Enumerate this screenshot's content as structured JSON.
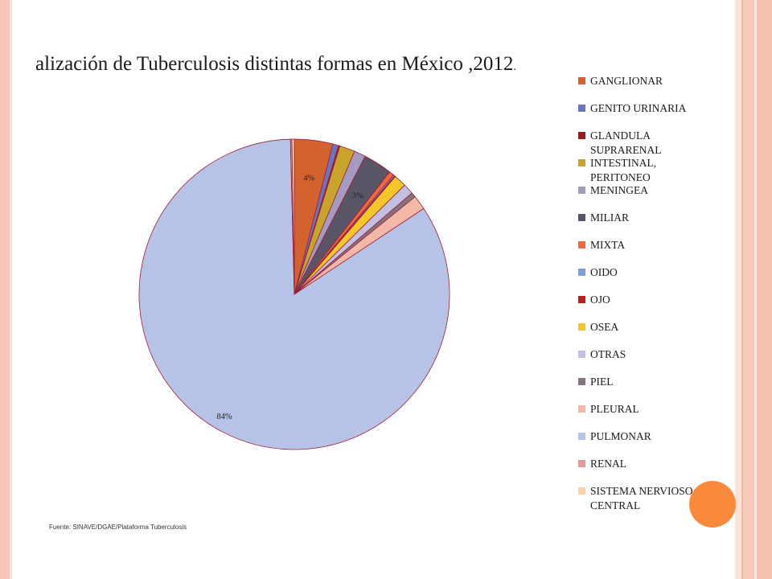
{
  "title": "alización de Tuberculosis distintas formas en México ,2012",
  "title_period": ".",
  "source": "Fuente: SINAVE/DGAE/Plataforma Tuberculosis",
  "chart_data": {
    "type": "pie",
    "title": "alización de Tuberculosis distintas formas en México ,2012",
    "legend_position": "right",
    "slices": [
      {
        "name": "GANGLIONAR",
        "value": 4.0,
        "label": "4%",
        "color": "#d4622e"
      },
      {
        "name": "GENITO URINARIA",
        "value": 0.6,
        "label": "",
        "color": "#6b73c2"
      },
      {
        "name": "GLANDULA SUPRARENAL",
        "value": 0.15,
        "label": "",
        "color": "#9b1b1b"
      },
      {
        "name": "INTESTINAL, PERITONEO",
        "value": 1.6,
        "label": "",
        "color": "#c9a42b"
      },
      {
        "name": "MENINGEA",
        "value": 1.2,
        "label": "",
        "color": "#a49ac2"
      },
      {
        "name": "MILIAR",
        "value": 3.0,
        "label": "3%",
        "color": "#595566"
      },
      {
        "name": "MIXTA",
        "value": 0.5,
        "label": "",
        "color": "#ef6b3e"
      },
      {
        "name": "OIDO",
        "value": 0.15,
        "label": "",
        "color": "#7f9ee0"
      },
      {
        "name": "OJO",
        "value": 0.1,
        "label": "",
        "color": "#b81e1e"
      },
      {
        "name": "OSEA",
        "value": 1.3,
        "label": "",
        "color": "#f5c629"
      },
      {
        "name": "OTRAS",
        "value": 1.1,
        "label": "",
        "color": "#c3bfe3"
      },
      {
        "name": "PIEL",
        "value": 0.5,
        "label": "",
        "color": "#85737f"
      },
      {
        "name": "PLEURAL",
        "value": 1.5,
        "label": "",
        "color": "#f4b8a6"
      },
      {
        "name": "PULMONAR",
        "value": 84.0,
        "label": "84%",
        "color": "#b7c3e6"
      },
      {
        "name": "RENAL",
        "value": 0.15,
        "label": "",
        "color": "#e59999"
      },
      {
        "name": "SISTEMA NERVIOSO CENTRAL",
        "value": 0.25,
        "label": "",
        "color": "#fbd2a8"
      }
    ]
  },
  "legend": [
    {
      "label": "GANGLIONAR",
      "color": "#d4622e"
    },
    {
      "label": "GENITO URINARIA",
      "color": "#6b73c2"
    },
    {
      "label": "GLANDULA SUPRARENAL",
      "color": "#9b1b1b"
    },
    {
      "label": "INTESTINAL, PERITONEO",
      "color": "#c9a42b"
    },
    {
      "label": "MENINGEA",
      "color": "#a49ac2"
    },
    {
      "label": "MILIAR",
      "color": "#595566"
    },
    {
      "label": "MIXTA",
      "color": "#ef6b3e"
    },
    {
      "label": "OIDO",
      "color": "#7f9ee0"
    },
    {
      "label": "OJO",
      "color": "#b81e1e"
    },
    {
      "label": "OSEA",
      "color": "#f5c629"
    },
    {
      "label": "OTRAS",
      "color": "#c3bfe3"
    },
    {
      "label": "PIEL",
      "color": "#85737f"
    },
    {
      "label": "PLEURAL",
      "color": "#f4b8a6"
    },
    {
      "label": "PULMONAR",
      "color": "#b7c3e6"
    },
    {
      "label": "RENAL",
      "color": "#e59999"
    },
    {
      "label": "SISTEMA NERVIOSO CENTRAL",
      "color": "#fbd2a8"
    }
  ]
}
